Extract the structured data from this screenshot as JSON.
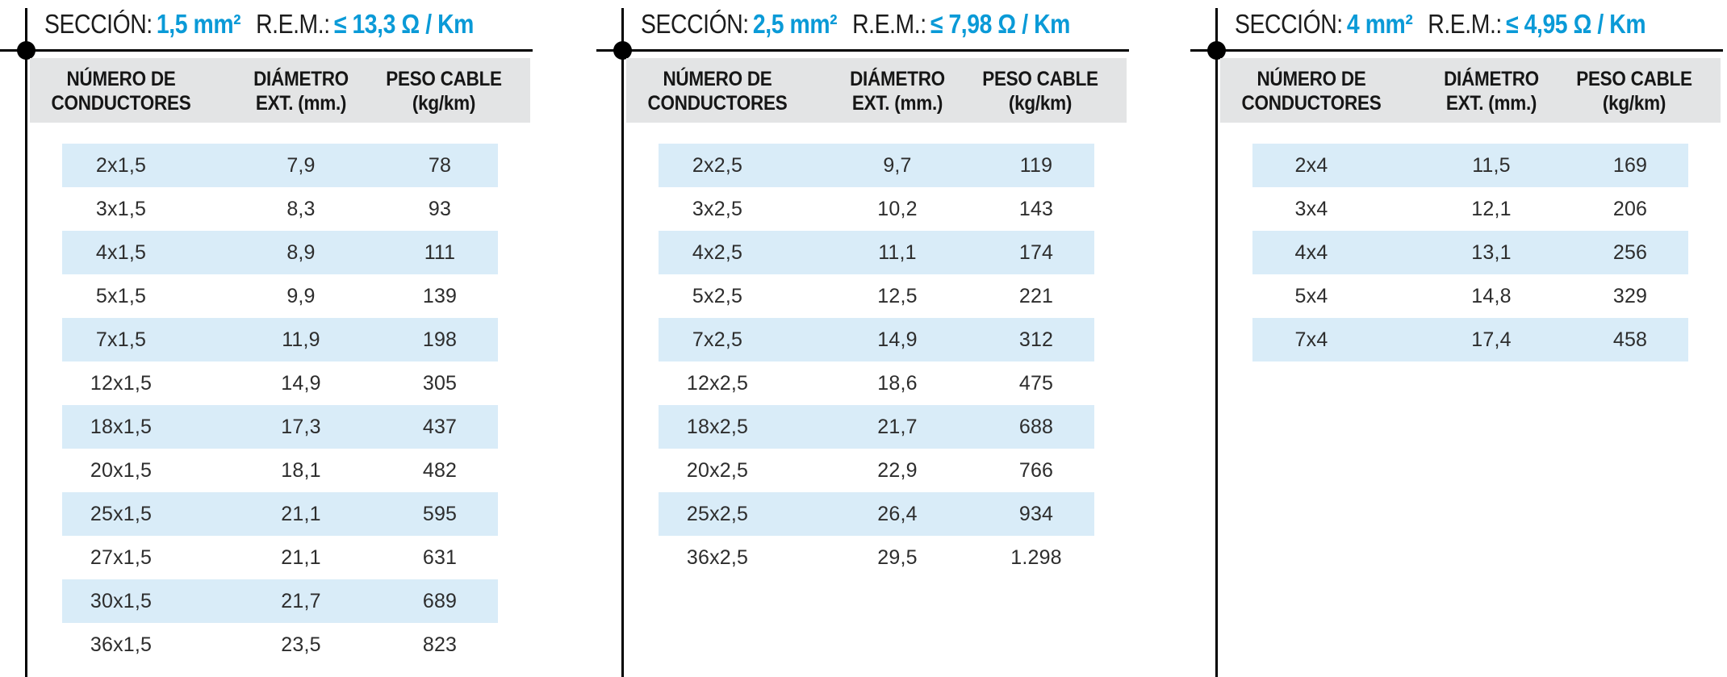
{
  "columns": [
    {
      "line1": "NÚMERO DE",
      "line2": "CONDUCTORES"
    },
    {
      "line1": "DIÁMETRO",
      "line2": "EXT. (mm.)"
    },
    {
      "line1": "PESO CABLE",
      "line2": "(kg/km)"
    }
  ],
  "sections": [
    {
      "seccion_label": "SECCIÓN:",
      "seccion_value": "1,5 mm²",
      "rem_label": "R.E.M.:",
      "rem_value": "≤ 13,3 Ω / Km",
      "rows": [
        {
          "conductors": "2x1,5",
          "diameter": "7,9",
          "weight": "78"
        },
        {
          "conductors": "3x1,5",
          "diameter": "8,3",
          "weight": "93"
        },
        {
          "conductors": "4x1,5",
          "diameter": "8,9",
          "weight": "111"
        },
        {
          "conductors": "5x1,5",
          "diameter": "9,9",
          "weight": "139"
        },
        {
          "conductors": "7x1,5",
          "diameter": "11,9",
          "weight": "198"
        },
        {
          "conductors": "12x1,5",
          "diameter": "14,9",
          "weight": "305"
        },
        {
          "conductors": "18x1,5",
          "diameter": "17,3",
          "weight": "437"
        },
        {
          "conductors": "20x1,5",
          "diameter": "18,1",
          "weight": "482"
        },
        {
          "conductors": "25x1,5",
          "diameter": "21,1",
          "weight": "595"
        },
        {
          "conductors": "27x1,5",
          "diameter": "21,1",
          "weight": "631"
        },
        {
          "conductors": "30x1,5",
          "diameter": "21,7",
          "weight": "689"
        },
        {
          "conductors": "36x1,5",
          "diameter": "23,5",
          "weight": "823"
        }
      ]
    },
    {
      "seccion_label": "SECCIÓN:",
      "seccion_value": "2,5 mm²",
      "rem_label": "R.E.M.:",
      "rem_value": "≤ 7,98 Ω / Km",
      "rows": [
        {
          "conductors": "2x2,5",
          "diameter": "9,7",
          "weight": "119"
        },
        {
          "conductors": "3x2,5",
          "diameter": "10,2",
          "weight": "143"
        },
        {
          "conductors": "4x2,5",
          "diameter": "11,1",
          "weight": "174"
        },
        {
          "conductors": "5x2,5",
          "diameter": "12,5",
          "weight": "221"
        },
        {
          "conductors": "7x2,5",
          "diameter": "14,9",
          "weight": "312"
        },
        {
          "conductors": "12x2,5",
          "diameter": "18,6",
          "weight": "475"
        },
        {
          "conductors": "18x2,5",
          "diameter": "21,7",
          "weight": "688"
        },
        {
          "conductors": "20x2,5",
          "diameter": "22,9",
          "weight": "766"
        },
        {
          "conductors": "25x2,5",
          "diameter": "26,4",
          "weight": "934"
        },
        {
          "conductors": "36x2,5",
          "diameter": "29,5",
          "weight": "1.298"
        }
      ]
    },
    {
      "seccion_label": "SECCIÓN:",
      "seccion_value": "4 mm²",
      "rem_label": "R.E.M.:",
      "rem_value": "≤ 4,95 Ω / Km",
      "rows": [
        {
          "conductors": "2x4",
          "diameter": "11,5",
          "weight": "169"
        },
        {
          "conductors": "3x4",
          "diameter": "12,1",
          "weight": "206"
        },
        {
          "conductors": "4x4",
          "diameter": "13,1",
          "weight": "256"
        },
        {
          "conductors": "5x4",
          "diameter": "14,8",
          "weight": "329"
        },
        {
          "conductors": "7x4",
          "diameter": "17,4",
          "weight": "458"
        }
      ]
    }
  ],
  "colors": {
    "accent_blue": "#0a9ad7",
    "row_highlight": "#d9ecf8",
    "header_band": "#e3e4e5",
    "line_black": "#000000"
  }
}
